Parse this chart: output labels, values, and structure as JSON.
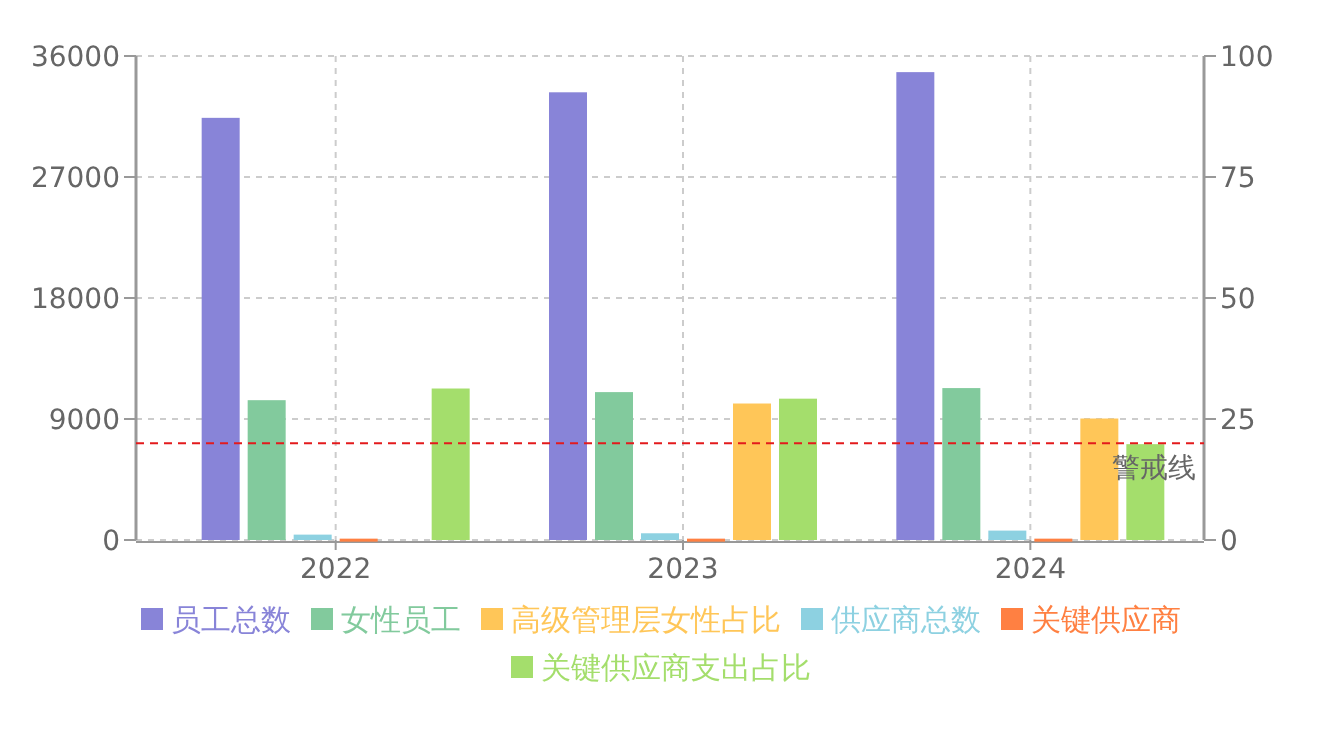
{
  "chart_data": {
    "type": "bar",
    "categories": [
      "2022",
      "2023",
      "2024"
    ],
    "series": [
      {
        "name": "员工总数",
        "color": "#8884d8",
        "values": [
          31400,
          33300,
          34800
        ]
      },
      {
        "name": "女性员工",
        "color": "#82ca9d",
        "values": [
          10400,
          11000,
          11300
        ]
      },
      {
        "name": "高级管理层女性占比",
        "color": "#ffc658",
        "axis": "y2",
        "values": [
          null,
          28.2,
          25.1
        ]
      },
      {
        "name": "供应商总数",
        "color": "#8dd1e1",
        "values": [
          400,
          500,
          700
        ]
      },
      {
        "name": "关键供应商",
        "color": "#ff8042",
        "values": [
          100,
          100,
          100
        ]
      },
      {
        "name": "关键供应商支出占比",
        "color": "#a4de6c",
        "axis": "y2",
        "values": [
          31.3,
          29.2,
          19.8
        ]
      }
    ],
    "ylim": [
      0,
      36000
    ],
    "yticks": [
      0,
      9000,
      18000,
      27000,
      36000
    ],
    "y2lim": [
      0,
      100
    ],
    "y2ticks": [
      0,
      25,
      50,
      75,
      100
    ],
    "ref_lines": [
      {
        "axis": "y2",
        "value": 20,
        "label": "警戒线",
        "color": "#e31a1c",
        "line_style": "dashed"
      }
    ],
    "grid": true,
    "legend": "bottom"
  }
}
